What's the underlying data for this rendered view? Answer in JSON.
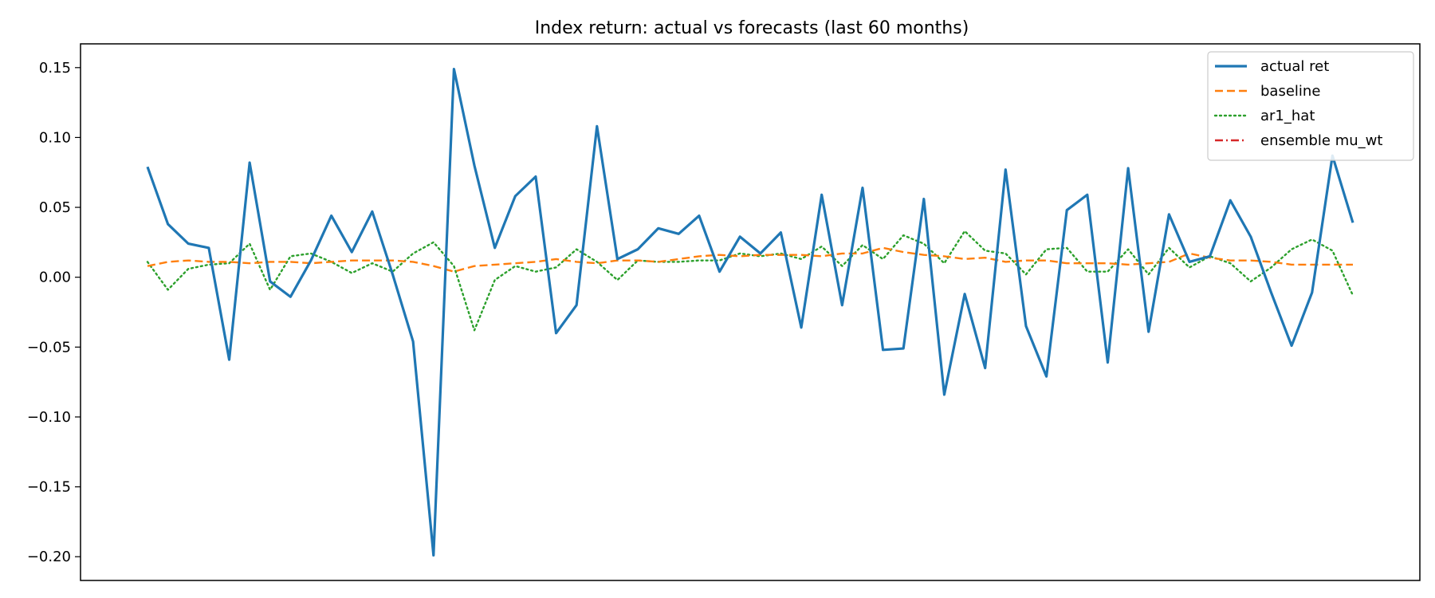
{
  "chart_data": {
    "type": "line",
    "title": "Index return: actual vs forecasts (last 60 months)",
    "xlabel": "",
    "ylabel": "",
    "ylim": [
      -0.217,
      0.167
    ],
    "yticks": [
      0.15,
      0.1,
      0.05,
      0.0,
      -0.05,
      -0.1,
      -0.15,
      -0.2
    ],
    "ytick_labels": [
      "0.15",
      "0.10",
      "0.05",
      "0.00",
      "−0.05",
      "−0.10",
      "−0.15",
      "−0.20"
    ],
    "x_count": 60,
    "grid": false,
    "legend_position": "top-right",
    "series": [
      {
        "name": "actual ret",
        "color": "#1f77b4",
        "style": "solid",
        "values": [
          0.079,
          0.038,
          0.024,
          0.021,
          -0.059,
          0.082,
          -0.003,
          -0.014,
          0.012,
          0.044,
          0.018,
          0.047,
          0.002,
          -0.046,
          -0.199,
          0.149,
          0.08,
          0.021,
          0.058,
          0.072,
          -0.04,
          -0.02,
          0.108,
          0.013,
          0.02,
          0.035,
          0.031,
          0.044,
          0.004,
          0.029,
          0.017,
          0.032,
          -0.036,
          0.059,
          -0.02,
          0.064,
          -0.052,
          -0.051,
          0.056,
          -0.084,
          -0.012,
          -0.065,
          0.077,
          -0.035,
          -0.071,
          0.048,
          0.059,
          -0.061,
          0.078,
          -0.039,
          0.045,
          0.011,
          0.015,
          0.055,
          0.029,
          -0.011,
          -0.049,
          -0.011,
          0.087,
          0.039
        ]
      },
      {
        "name": "baseline",
        "color": "#ff7f0e",
        "style": "dashed",
        "values": [
          0.008,
          0.011,
          0.012,
          0.011,
          0.011,
          0.01,
          0.011,
          0.011,
          0.01,
          0.011,
          0.012,
          0.012,
          0.012,
          0.011,
          0.008,
          0.004,
          0.008,
          0.009,
          0.01,
          0.011,
          0.013,
          0.011,
          0.01,
          0.012,
          0.012,
          0.011,
          0.013,
          0.015,
          0.016,
          0.015,
          0.016,
          0.016,
          0.016,
          0.015,
          0.017,
          0.017,
          0.021,
          0.018,
          0.016,
          0.015,
          0.013,
          0.014,
          0.011,
          0.012,
          0.012,
          0.01,
          0.01,
          0.01,
          0.009,
          0.01,
          0.011,
          0.017,
          0.014,
          0.012,
          0.012,
          0.011,
          0.009,
          0.009,
          0.009,
          0.009
        ]
      },
      {
        "name": "ar1_hat",
        "color": "#2ca02c",
        "style": "dotted",
        "values": [
          0.011,
          -0.009,
          0.006,
          0.009,
          0.01,
          0.024,
          -0.009,
          0.015,
          0.017,
          0.011,
          0.003,
          0.01,
          0.004,
          0.017,
          0.025,
          0.008,
          -0.038,
          -0.002,
          0.008,
          0.004,
          0.007,
          0.02,
          0.011,
          -0.002,
          0.012,
          0.011,
          0.011,
          0.012,
          0.012,
          0.017,
          0.015,
          0.017,
          0.013,
          0.022,
          0.008,
          0.023,
          0.013,
          0.03,
          0.024,
          0.01,
          0.033,
          0.019,
          0.017,
          0.002,
          0.02,
          0.021,
          0.004,
          0.004,
          0.02,
          0.002,
          0.021,
          0.007,
          0.015,
          0.01,
          -0.003,
          0.007,
          0.02,
          0.027,
          0.019,
          -0.013
        ]
      },
      {
        "name": "ensemble mu_wt",
        "color": "#d62728",
        "style": "dashdot",
        "values": []
      }
    ]
  }
}
